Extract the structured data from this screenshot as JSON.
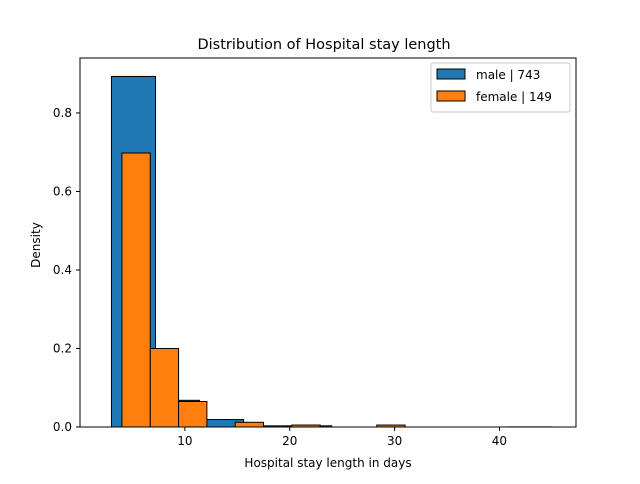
{
  "chart_data": {
    "type": "histogram",
    "title": "Distribution of Hospital stay length",
    "xlabel": "Hospital stay length in days",
    "ylabel": "Density",
    "xlim": [
      0,
      47.3
    ],
    "ylim": [
      0,
      0.94
    ],
    "xticks": [
      {
        "value": 10,
        "label": "10"
      },
      {
        "value": 20,
        "label": "20"
      },
      {
        "value": 30,
        "label": "30"
      },
      {
        "value": 40,
        "label": "40"
      }
    ],
    "yticks": [
      {
        "value": 0,
        "label": "0.0"
      },
      {
        "value": 0.2,
        "label": "0.2"
      },
      {
        "value": 0.4,
        "label": "0.4"
      },
      {
        "value": 0.6,
        "label": "0.6"
      },
      {
        "value": 0.8,
        "label": "0.8"
      }
    ],
    "grid": false,
    "legend_position": "top-right",
    "series": [
      {
        "name": "male | 743",
        "color": "#1f77b4",
        "bins": [
          {
            "x0": 3.0,
            "x1": 7.2,
            "density": 0.893
          },
          {
            "x0": 7.2,
            "x1": 11.4,
            "density": 0.068
          },
          {
            "x0": 11.4,
            "x1": 15.6,
            "density": 0.019
          },
          {
            "x0": 15.6,
            "x1": 19.8,
            "density": 0.003
          },
          {
            "x0": 19.8,
            "x1": 24.0,
            "density": 0.003
          },
          {
            "x0": 24.0,
            "x1": 28.2,
            "density": 0.0
          },
          {
            "x0": 28.2,
            "x1": 32.4,
            "density": 0.0
          },
          {
            "x0": 32.4,
            "x1": 36.6,
            "density": 0.0
          },
          {
            "x0": 36.6,
            "x1": 40.8,
            "density": 0.0
          },
          {
            "x0": 40.8,
            "x1": 45.0,
            "density": 0.0003
          }
        ]
      },
      {
        "name": "female | 149",
        "color": "#ff7f0e",
        "bins": [
          {
            "x0": 4.0,
            "x1": 6.7,
            "density": 0.698
          },
          {
            "x0": 6.7,
            "x1": 9.4,
            "density": 0.2
          },
          {
            "x0": 9.4,
            "x1": 12.1,
            "density": 0.065
          },
          {
            "x0": 12.1,
            "x1": 14.8,
            "density": 0.0
          },
          {
            "x0": 14.8,
            "x1": 17.5,
            "density": 0.012
          },
          {
            "x0": 17.5,
            "x1": 20.2,
            "density": 0.0
          },
          {
            "x0": 20.2,
            "x1": 22.9,
            "density": 0.005
          },
          {
            "x0": 22.9,
            "x1": 25.6,
            "density": 0.0
          },
          {
            "x0": 25.6,
            "x1": 28.3,
            "density": 0.0
          },
          {
            "x0": 28.3,
            "x1": 31.0,
            "density": 0.005
          }
        ]
      }
    ]
  }
}
